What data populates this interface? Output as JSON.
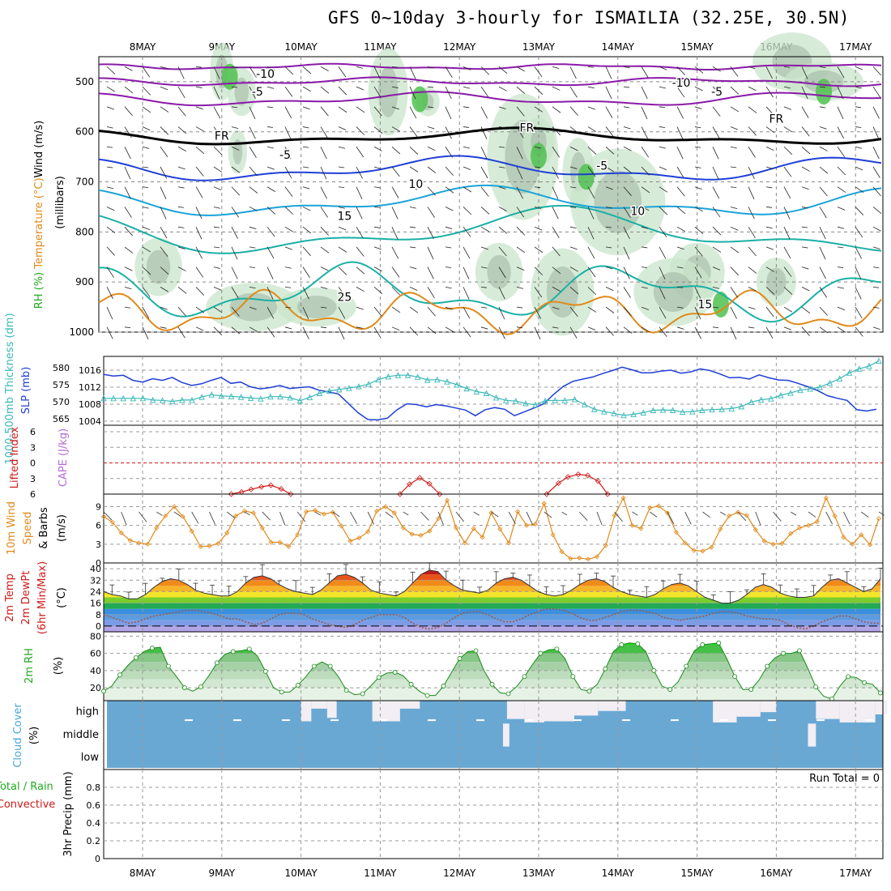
{
  "title": "GFS 0~10day 3-hourly for ISMAILIA (32.25E, 30.5N)",
  "run_total": "Run Total = 0",
  "colors": {
    "purple": "#8a1aa8",
    "black": "#000000",
    "blue": "#1f3fd6",
    "lightblue": "#1aa3d8",
    "teal": "#1ab0a6",
    "orange": "#e08a1a",
    "red": "#d11a1a",
    "green": "#22aa22",
    "cloud": "#6aa8d4",
    "cloud_clear": "#f2eef4"
  },
  "chart_data": [
    {
      "type": "line",
      "name": "upper-air",
      "ylabel_parts": [
        "Wind (m/s)",
        "Temperature (°C)",
        "RH (%)"
      ],
      "ylabel_unit": "(millibars)",
      "y_ticks": [
        500,
        600,
        700,
        800,
        900,
        1000
      ],
      "ylim": [
        450,
        1000
      ],
      "x_date_labels": [
        "8MAY",
        "9MAY",
        "10MAY",
        "11MAY",
        "12MAY",
        "13MAY",
        "14MAY",
        "15MAY",
        "16MAY",
        "17MAY"
      ],
      "contour_labels": [
        {
          "text": "-10",
          "x": 1.55,
          "y": 492
        },
        {
          "text": "-10",
          "x": 6.8,
          "y": 510
        },
        {
          "text": "-5",
          "x": 1.45,
          "y": 528
        },
        {
          "text": "-5",
          "x": 7.25,
          "y": 528
        },
        {
          "text": "FR",
          "x": 1.0,
          "y": 616
        },
        {
          "text": "FR",
          "x": 4.85,
          "y": 600
        },
        {
          "text": "FR",
          "x": 8.0,
          "y": 582
        },
        {
          "text": "-5",
          "x": 1.8,
          "y": 654
        },
        {
          "text": "-5",
          "x": 5.8,
          "y": 676
        },
        {
          "text": "10",
          "x": 3.45,
          "y": 712
        },
        {
          "text": "10",
          "x": 6.25,
          "y": 766
        },
        {
          "text": "15",
          "x": 2.55,
          "y": 776
        },
        {
          "text": "15",
          "x": 7.1,
          "y": 952
        },
        {
          "text": "25",
          "x": 2.55,
          "y": 938
        }
      ]
    },
    {
      "type": "line",
      "name": "slp-thickness",
      "ylabel_left": "1000-500mb Thickness (dm)",
      "ylabel_right": "SLP (mb)",
      "thickness_ticks": [
        565,
        570,
        575,
        580
      ],
      "slp_ticks": [
        1004,
        1008,
        1012,
        1016
      ],
      "series": [
        {
          "name": "SLP",
          "values": [
            1015,
            1014.6,
            1014.8,
            1013.6,
            1013.2,
            1014.0,
            1013.6,
            1014.3,
            1013.1,
            1012.4,
            1012.8,
            1013.6,
            1014.3,
            1012.9,
            1013.2,
            1012.1,
            1011.6,
            1011.9,
            1012.4,
            1011.7,
            1011.9,
            1012.1,
            1011.3,
            1010.9,
            1010.4,
            1008.2,
            1006.0,
            1004.4,
            1004.3,
            1004.7,
            1006.7,
            1008.1,
            1007.9,
            1007.4,
            1007.9,
            1007.6,
            1007.1,
            1006.6,
            1005.3,
            1006.7,
            1007.2,
            1006.8,
            1005.3,
            1006.2,
            1007.1,
            1008.1,
            1010.3,
            1012.2,
            1013.4,
            1013.9,
            1014.4,
            1015.2,
            1015.9,
            1016.7,
            1016.1,
            1015.4,
            1015.4,
            1015.8,
            1016.0,
            1015.3,
            1015.6,
            1016.3,
            1015.9,
            1015.1,
            1014.2,
            1014.3,
            1013.9,
            1014.9,
            1014.2,
            1013.7,
            1013.6,
            1012.9,
            1012.1,
            1011.2,
            1010.0,
            1009.4,
            1008.9,
            1006.7,
            1006.4,
            1006.8
          ]
        },
        {
          "name": "Thickness",
          "values": [
            571,
            571,
            571,
            571,
            571,
            570.5,
            570.4,
            570.1,
            570.5,
            570.5,
            571.4,
            572.1,
            571.7,
            571.6,
            571.4,
            571.1,
            570.9,
            571.5,
            571.5,
            571.2,
            570.3,
            571.3,
            572.5,
            573.2,
            573.6,
            574.0,
            574.5,
            575.2,
            576.5,
            577.4,
            577.8,
            577.8,
            577.3,
            576.4,
            576.5,
            575.9,
            575.0,
            573.9,
            573.0,
            572.5,
            571.2,
            570.4,
            570.2,
            569.5,
            569.1,
            570.3,
            570.4,
            570.4,
            570.7,
            569.2,
            567.8,
            567.1,
            566.6,
            566.0,
            566.3,
            566.8,
            567.5,
            567.6,
            567.5,
            567.0,
            567.1,
            567.5,
            567.7,
            567.8,
            568.0,
            568.6,
            569.9,
            570.6,
            570.9,
            571.9,
            572.6,
            573.4,
            573.8,
            574.3,
            575.5,
            576.8,
            578.5,
            579.7,
            580.5,
            582.0
          ]
        }
      ]
    },
    {
      "type": "line",
      "name": "cape-li",
      "ylabel_left": "Lifted Index",
      "ylabel_right": "CAPE (J/kg)",
      "y_ticks": [
        "-6",
        "-3",
        "0",
        "3",
        "6"
      ],
      "ylim": [
        -6,
        6
      ],
      "series": [
        {
          "name": "Lifted Index",
          "segments": [
            {
              "x": [
                1.12,
                1.25,
                1.37,
                1.5,
                1.62,
                1.75,
                1.87
              ],
              "values": [
                6,
                5.6,
                5.1,
                4.6,
                4.3,
                5.0,
                6
              ]
            },
            {
              "x": [
                3.25,
                3.37,
                3.5,
                3.62,
                3.75
              ],
              "values": [
                6,
                4.1,
                2.9,
                4.0,
                6
              ]
            },
            {
              "x": [
                5.1,
                5.25,
                5.37,
                5.5,
                5.62,
                5.75,
                5.87
              ],
              "values": [
                6,
                3.9,
                2.7,
                2.2,
                2.4,
                3.5,
                6
              ]
            }
          ]
        }
      ]
    },
    {
      "type": "line",
      "name": "wind10m",
      "ylabel_left": "10m Wind Speed & Barbs",
      "ylabel_unit": "(m/s)",
      "y_ticks": [
        0,
        3,
        6,
        9
      ],
      "ylim": [
        0,
        11
      ],
      "series": [
        {
          "name": "10m Wind Speed",
          "values": [
            7.4,
            6.5,
            4.8,
            3.6,
            3.2,
            3.0,
            5.6,
            7.5,
            9.0,
            7.4,
            5.1,
            2.6,
            2.7,
            3.1,
            4.8,
            7.5,
            8.3,
            8.0,
            5.6,
            3.3,
            3.3,
            2.6,
            4.5,
            8.2,
            8.4,
            7.8,
            8.1,
            5.9,
            3.5,
            4.0,
            5.0,
            8.3,
            9.0,
            8.0,
            5.6,
            4.6,
            4.4,
            5.1,
            7.1,
            10.0,
            5.6,
            3.2,
            5.5,
            4.1,
            8.0,
            5.4,
            3.2,
            8.2,
            6.0,
            6.2,
            9.5,
            4.5,
            1.8,
            0.7,
            0.8,
            0.6,
            1.0,
            2.8,
            7.6,
            10.4,
            6.0,
            5.5,
            8.8,
            9.1,
            8.0,
            4.9,
            3.2,
            2.0,
            1.9,
            2.5,
            5.4,
            7.5,
            8.1,
            7.6,
            5.3,
            3.5,
            3.0,
            3.1,
            4.7,
            5.6,
            6.0,
            6.6,
            10.4,
            7.5,
            4.1,
            3.0,
            4.5,
            2.9,
            7.1
          ]
        }
      ]
    },
    {
      "type": "area",
      "name": "temp2m",
      "ylabel_left": "2m Temp 2m DewPt (6hr Min/Max)",
      "ylabel_unit": "(°C)",
      "y_ticks": [
        0,
        8,
        16,
        24,
        32,
        40
      ],
      "ylim": [
        -4,
        44
      ],
      "series": [
        {
          "name": "2m Temp",
          "values": [
            24,
            22,
            21,
            19,
            19,
            22,
            27,
            31,
            33,
            32,
            29,
            25,
            23,
            22,
            21,
            21,
            24,
            30,
            34,
            35,
            33,
            29,
            26,
            24,
            23,
            22,
            25,
            30,
            35,
            36,
            34,
            30,
            25,
            23,
            22,
            21,
            24,
            30,
            36,
            39,
            38,
            32,
            28,
            25,
            24,
            23,
            25,
            30,
            33,
            34,
            32,
            28,
            24,
            22,
            21,
            22,
            25,
            29,
            32,
            33,
            31,
            27,
            24,
            22,
            21,
            20,
            22,
            26,
            29,
            30,
            28,
            24,
            20,
            18,
            16,
            16,
            18,
            22,
            27,
            29,
            27,
            23,
            21,
            20,
            20,
            21,
            27,
            32,
            33,
            30,
            27,
            24,
            26,
            33
          ]
        },
        {
          "name": "2m DewPt",
          "values": [
            8,
            6,
            4,
            2,
            3,
            5,
            7,
            8,
            9,
            10,
            11,
            11,
            10,
            9,
            7,
            5,
            5,
            3,
            1,
            2,
            5,
            8,
            9,
            9,
            8,
            5,
            3,
            1,
            0,
            -1,
            1,
            4,
            6,
            8,
            8,
            8,
            6,
            2,
            -1,
            -2,
            -1,
            2,
            6,
            9,
            10,
            10,
            8,
            5,
            3,
            3,
            5,
            8,
            10,
            12,
            12,
            11,
            9,
            6,
            4,
            4,
            6,
            8,
            10,
            11,
            11,
            10,
            9,
            6,
            5,
            4,
            5,
            6,
            7,
            9,
            10,
            10,
            9,
            7,
            6,
            5,
            5,
            4,
            1,
            -1,
            -2,
            0,
            3,
            5,
            7,
            7,
            5,
            3,
            2,
            2
          ]
        }
      ]
    },
    {
      "type": "area",
      "name": "rh2m",
      "ylabel_left": "2m RH",
      "ylabel_unit": "(%)",
      "y_ticks": [
        20,
        40,
        60,
        80
      ],
      "ylim": [
        5,
        85
      ],
      "series": [
        {
          "name": "2m RH",
          "values": [
            16,
            22,
            35,
            46,
            55,
            62,
            66,
            67,
            45,
            33,
            20,
            16,
            21,
            34,
            49,
            59,
            62,
            63,
            65,
            57,
            39,
            20,
            15,
            15,
            23,
            33,
            45,
            50,
            45,
            33,
            17,
            12,
            13,
            22,
            32,
            37,
            38,
            34,
            24,
            16,
            11,
            11,
            22,
            38,
            54,
            62,
            63,
            40,
            24,
            14,
            13,
            21,
            33,
            47,
            60,
            64,
            65,
            54,
            33,
            18,
            16,
            24,
            42,
            62,
            70,
            72,
            71,
            62,
            40,
            22,
            18,
            27,
            45,
            63,
            70,
            71,
            72,
            54,
            33,
            18,
            18,
            29,
            45,
            55,
            60,
            60,
            63,
            43,
            21,
            10,
            7,
            22,
            33,
            32,
            26,
            24,
            14
          ]
        }
      ]
    },
    {
      "type": "bar",
      "name": "cloud",
      "ylabel_left": "Cloud Cover",
      "ylabel_unit": "(%)",
      "y_ticks": [
        "high",
        "middle",
        "low"
      ],
      "series": [
        {
          "name": "high",
          "values": [
            80,
            100,
            100,
            100,
            100,
            100,
            100,
            100,
            100,
            100,
            100,
            100,
            100,
            100,
            100,
            100,
            100,
            100,
            100,
            100,
            100,
            100,
            100,
            100,
            100,
            100,
            100,
            100,
            100,
            100,
            80,
            100,
            100,
            100,
            100,
            100,
            100,
            100,
            100,
            100,
            100,
            100,
            100,
            100,
            100,
            100,
            100,
            100,
            100,
            100,
            100,
            100,
            100,
            100,
            100,
            100,
            100,
            100,
            100,
            100,
            100,
            100,
            100,
            100,
            100,
            100,
            100,
            100,
            100,
            100,
            100,
            100,
            100,
            100,
            100,
            100,
            100,
            100,
            100,
            100,
            100,
            100,
            100,
            100,
            100,
            100,
            100,
            100,
            100,
            100,
            100,
            100,
            100,
            100
          ]
        }
      ],
      "clear_high": [
        {
          "x": 2.0,
          "w": 0.13,
          "depth": 0.9
        },
        {
          "x": 2.13,
          "w": 0.2,
          "depth": 0.35
        },
        {
          "x": 2.33,
          "w": 0.12,
          "depth": 0.75
        },
        {
          "x": 2.9,
          "w": 0.35,
          "depth": 0.9
        },
        {
          "x": 3.2,
          "w": 0.3,
          "depth": 0.35
        },
        {
          "x": 4.6,
          "w": 0.22,
          "depth": 0.8
        },
        {
          "x": 4.82,
          "w": 0.25,
          "depth": 0.95
        },
        {
          "x": 5.05,
          "w": 0.4,
          "depth": 0.9
        },
        {
          "x": 5.45,
          "w": 0.3,
          "depth": 0.65
        },
        {
          "x": 5.75,
          "w": 0.35,
          "depth": 0.45
        },
        {
          "x": 7.2,
          "w": 0.3,
          "depth": 0.95
        },
        {
          "x": 7.5,
          "w": 0.3,
          "depth": 0.7
        },
        {
          "x": 7.8,
          "w": 0.2,
          "depth": 0.5
        },
        {
          "x": 8.5,
          "w": 0.3,
          "depth": 0.8
        },
        {
          "x": 8.8,
          "w": 0.45,
          "depth": 0.95
        },
        {
          "x": 9.25,
          "w": 0.15,
          "depth": 0.6
        },
        {
          "x": 9.55,
          "w": 0.15,
          "depth": 0.95
        }
      ],
      "clear_mid": [
        {
          "x": 4.55,
          "w": 0.08,
          "depth": 1
        },
        {
          "x": 8.4,
          "w": 0.1,
          "depth": 1
        }
      ]
    },
    {
      "type": "line",
      "name": "precip",
      "ylabel_left": "Total / Rain Convective",
      "ylabel_unit": "3hr Precip (mm)",
      "y_ticks": [
        0,
        0.2,
        0.4,
        0.6,
        0.8
      ],
      "ylim": [
        0,
        1
      ],
      "series": [
        {
          "name": "3hr Precip",
          "values": []
        }
      ]
    }
  ]
}
